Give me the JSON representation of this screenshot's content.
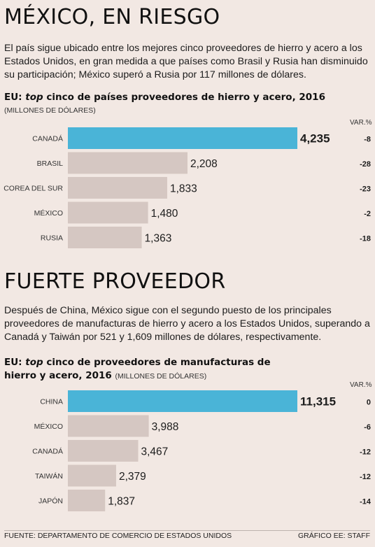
{
  "section1": {
    "headline": "MÉXICO, EN RIESGO",
    "lede": "El país sigue ubicado entre los mejores cinco proveedores de hierro y acero a los Estados Unidos, en gran medida a que países como Brasil y Rusia han disminuido su participación; México superó a Rusia por 117 millones de dólares.",
    "chart_title_prefix": "EU: ",
    "chart_title_italic": "top",
    "chart_title_rest": " cinco de países proveedores de hierro y acero, 2016",
    "chart_unit": "(MILLONES DE DÓLARES)",
    "var_header": "VAR.%"
  },
  "section2": {
    "headline": "FUERTE PROVEEDOR",
    "lede": "Después de China, México sigue con el segundo puesto de los principales proveedores de manufacturas de hierro y acero a los Estados Unidos, superando a Canadá y Taiwán por 521 y 1,609 millones de dólares, respectivamente.",
    "chart_title_prefix": "EU: ",
    "chart_title_italic": "top",
    "chart_title_rest": " cinco de proveedores de manufacturas de",
    "chart_title_line2": "hierro y acero, 2016",
    "chart_unit": "(MILLONES DE DÓLARES)",
    "var_header": "VAR.%"
  },
  "footer": {
    "source": "FUENTE: DEPARTAMENTO DE COMERCIO DE ESTADOS UNIDOS",
    "credit": "GRÁFICO EE: STAFF"
  },
  "colors": {
    "highlight": "#4ab4d7",
    "bar": "#d5c7c2",
    "background": "#f2e8e3"
  },
  "chart_data": [
    {
      "type": "bar",
      "orientation": "horizontal",
      "title": "EU: top cinco de países proveedores de hierro y acero, 2016",
      "unit": "MILLONES DE DÓLARES",
      "categories": [
        "CANADÁ",
        "BRASIL",
        "COREA DEL SUR",
        "MÉXICO",
        "RUSIA"
      ],
      "values": [
        4235,
        2208,
        1833,
        1480,
        1363
      ],
      "value_labels": [
        "4,235",
        "2,208",
        "1,833",
        "1,480",
        "1,363"
      ],
      "var_pct": [
        -8,
        -28,
        -23,
        -2,
        -18
      ],
      "var_labels": [
        "-8",
        "-28",
        "-23",
        "-2",
        "-18"
      ],
      "highlight_index": 0,
      "xlim": [
        0,
        4235
      ]
    },
    {
      "type": "bar",
      "orientation": "horizontal",
      "title": "EU: top cinco de proveedores de manufacturas de hierro y acero, 2016",
      "unit": "MILLONES DE DÓLARES",
      "categories": [
        "CHINA",
        "MÉXICO",
        "CANADÁ",
        "TAIWÁN",
        "JAPÓN"
      ],
      "values": [
        11315,
        3988,
        3467,
        2379,
        1837
      ],
      "value_labels": [
        "11,315",
        "3,988",
        "3,467",
        "2,379",
        "1,837"
      ],
      "var_pct": [
        0,
        -6,
        -12,
        -12,
        -14
      ],
      "var_labels": [
        "0",
        "-6",
        "-12",
        "-12",
        "-14"
      ],
      "highlight_index": 0,
      "xlim": [
        0,
        11315
      ]
    }
  ]
}
